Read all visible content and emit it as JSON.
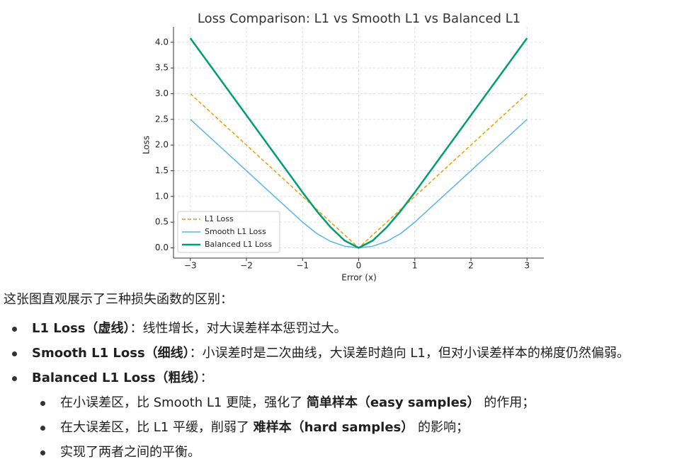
{
  "chart_data": {
    "type": "line",
    "title": "Loss Comparison: L1 vs Smooth L1 vs Balanced L1",
    "x_label": "Error (x)",
    "y_label": "Loss",
    "x": [
      -3,
      -2.5,
      -2,
      -1.5,
      -1,
      -0.75,
      -0.5,
      -0.25,
      0,
      0.25,
      0.5,
      0.75,
      1,
      1.5,
      2,
      2.5,
      3
    ],
    "series": [
      {
        "name": "L1 Loss",
        "color": "#E69F00",
        "dashed": true,
        "width": 1.5,
        "values": [
          3,
          2.5,
          2,
          1.5,
          1,
          0.75,
          0.5,
          0.25,
          0,
          0.25,
          0.5,
          0.75,
          1,
          1.5,
          2,
          2.5,
          3
        ]
      },
      {
        "name": "Smooth L1 Loss",
        "color": "#56B4E9",
        "dashed": false,
        "width": 1.5,
        "values": [
          2.5,
          2,
          1.5,
          1,
          0.5,
          0.28,
          0.125,
          0.031,
          0,
          0.031,
          0.125,
          0.28,
          0.5,
          1,
          1.5,
          2,
          2.5
        ]
      },
      {
        "name": "Balanced L1 Loss",
        "color": "#009E73",
        "dashed": false,
        "width": 2.5,
        "values": [
          4.08,
          3.33,
          2.58,
          1.83,
          1.08,
          0.72,
          0.4,
          0.14,
          0,
          0.14,
          0.4,
          0.72,
          1.08,
          1.83,
          2.58,
          3.33,
          4.08
        ]
      }
    ],
    "xlim": [
      -3.3,
      3.3
    ],
    "xticks": [
      {
        "value": -3,
        "label": "−3"
      },
      {
        "value": -2,
        "label": "−2"
      },
      {
        "value": -1,
        "label": "−1"
      },
      0,
      1,
      2,
      3
    ],
    "ylim": [
      -0.2,
      4.3
    ],
    "yticks": [
      {
        "value": 0,
        "label": "0.0"
      },
      0.5,
      {
        "value": 1,
        "label": "1.0"
      },
      1.5,
      {
        "value": 2,
        "label": "2.0"
      },
      2.5,
      {
        "value": 3,
        "label": "3.0"
      },
      3.5,
      {
        "value": 4,
        "label": "4.0"
      }
    ],
    "grid": true,
    "legend": "lower left"
  },
  "text": {
    "intro": "这张图直观展示了三种损失函数的区别：",
    "bullets": [
      {
        "segments": [
          {
            "text": "L1 Loss（虚线）",
            "bold": true
          },
          {
            "text": "：线性增长，对大误差样本惩罚过大。"
          }
        ]
      },
      {
        "segments": [
          {
            "text": "Smooth L1 Loss（细线）",
            "bold": true
          },
          {
            "text": "：小误差时是二次曲线，大误差时趋向 L1，但对小误差样本的梯度仍然偏弱。"
          }
        ]
      },
      {
        "segments": [
          {
            "text": "Balanced L1 Loss（粗线）",
            "bold": true
          },
          {
            "text": "："
          }
        ],
        "children": [
          {
            "segments": [
              {
                "text": "在小误差区，比 Smooth L1 更陡，强化了 "
              },
              {
                "text": "简单样本（easy samples）",
                "bold": true
              },
              {
                "text": " 的作用；"
              }
            ]
          },
          {
            "segments": [
              {
                "text": "在大误差区，比 L1 平缓，削弱了 "
              },
              {
                "text": "难样本（hard samples）",
                "bold": true
              },
              {
                "text": " 的影响；"
              }
            ]
          },
          {
            "segments": [
              {
                "text": "实现了两者之间的平衡。"
              }
            ]
          }
        ]
      }
    ]
  }
}
